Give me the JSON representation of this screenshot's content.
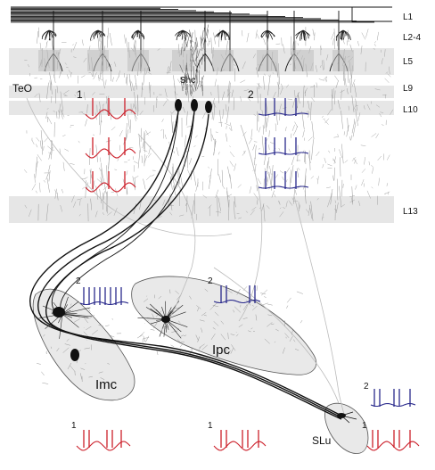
{
  "layers": {
    "l1": "L1",
    "l24": "L2-4",
    "l5": "L5",
    "l9": "L9",
    "l10": "L10",
    "l13": "L13"
  },
  "regions": {
    "teo": "TeO",
    "shc": "Shc",
    "imc": "Imc",
    "ipc": "Ipc",
    "slu": "SLu"
  },
  "markers": {
    "tectum_1": "1",
    "tectum_2": "2",
    "imc_2": "2",
    "ipc_2": "2",
    "slu_2": "2",
    "imc_1": "1",
    "ipc_1": "1",
    "slu_1": "1"
  },
  "colors": {
    "red": "#cc1f2a",
    "blue": "#2a2a8c",
    "band": "#e6e6e6",
    "nucleus": "#e8e8e8",
    "dendrite": "#9a9a9a",
    "axon": "#111111"
  }
}
